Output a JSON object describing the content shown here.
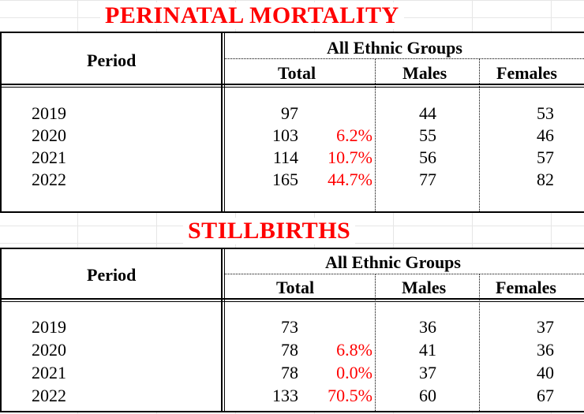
{
  "tables": [
    {
      "title": "PERINATAL MORTALITY",
      "header": {
        "period": "Period",
        "group": "All Ethnic Groups",
        "total": "Total",
        "males": "Males",
        "females": "Females"
      },
      "rows": [
        {
          "period": "2019",
          "total": "97",
          "change": "",
          "males": "44",
          "females": "53"
        },
        {
          "period": "2020",
          "total": "103",
          "change": "6.2%",
          "males": "55",
          "females": "46"
        },
        {
          "period": "2021",
          "total": "114",
          "change": "10.7%",
          "males": "56",
          "females": "57"
        },
        {
          "period": "2022",
          "total": "165",
          "change": "44.7%",
          "males": "77",
          "females": "82"
        }
      ]
    },
    {
      "title": "STILLBIRTHS",
      "header": {
        "period": "Period",
        "group": "All Ethnic Groups",
        "total": "Total",
        "males": "Males",
        "females": "Females"
      },
      "rows": [
        {
          "period": "2019",
          "total": "73",
          "change": "",
          "males": "36",
          "females": "37"
        },
        {
          "period": "2020",
          "total": "78",
          "change": "6.8%",
          "males": "41",
          "females": "36"
        },
        {
          "period": "2021",
          "total": "78",
          "change": "0.0%",
          "males": "37",
          "females": "40"
        },
        {
          "period": "2022",
          "total": "133",
          "change": "70.5%",
          "males": "60",
          "females": "67"
        }
      ]
    }
  ]
}
